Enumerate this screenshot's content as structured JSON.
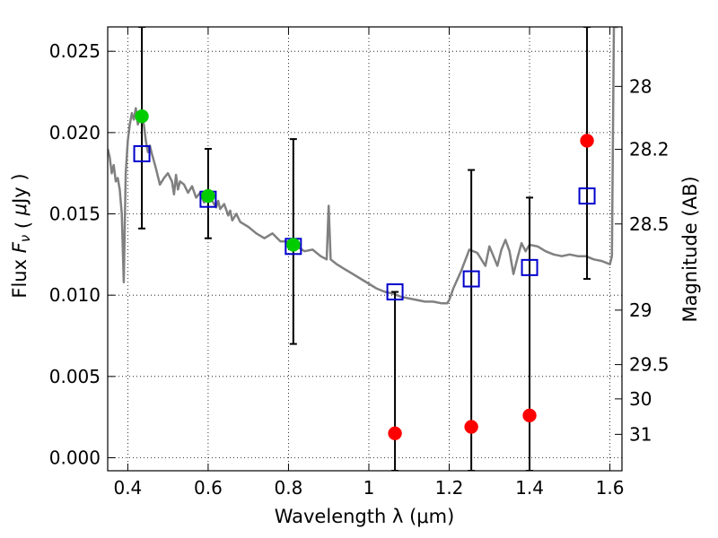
{
  "chart_data": {
    "type": "scatter",
    "xlabel": "Wavelength  λ (μm)",
    "ylabel": "Flux  Fν  ( μJy )",
    "y2label": "Magnitude (AB)",
    "xlim": [
      0.35,
      1.63
    ],
    "ylim": [
      -0.0008,
      0.0265
    ],
    "grid": "dotted",
    "xticks": [
      {
        "value": 0.4,
        "label": "0.4"
      },
      {
        "value": 0.6,
        "label": "0.6"
      },
      {
        "value": 0.8,
        "label": "0.8"
      },
      {
        "value": 1.0,
        "label": "1"
      },
      {
        "value": 1.2,
        "label": "1.2"
      },
      {
        "value": 1.4,
        "label": "1.4"
      },
      {
        "value": 1.6,
        "label": "1.6"
      }
    ],
    "yticks": [
      {
        "value": 0.0,
        "label": "0.000"
      },
      {
        "value": 0.005,
        "label": "0.005"
      },
      {
        "value": 0.01,
        "label": "0.010"
      },
      {
        "value": 0.015,
        "label": "0.015"
      },
      {
        "value": 0.02,
        "label": "0.020"
      },
      {
        "value": 0.025,
        "label": "0.025"
      }
    ],
    "y2ticks": [
      {
        "flux": 0.02284,
        "label": "28"
      },
      {
        "flux": 0.01897,
        "label": "28.2"
      },
      {
        "flux": 0.01438,
        "label": "28.5"
      },
      {
        "flux": 0.00908,
        "label": "29"
      },
      {
        "flux": 0.00573,
        "label": "29.5"
      },
      {
        "flux": 0.00362,
        "label": "30"
      },
      {
        "flux": 0.00144,
        "label": "31"
      }
    ],
    "series": [
      {
        "style": "line",
        "color": "#808080",
        "x": [
          0.35,
          0.355,
          0.36,
          0.365,
          0.37,
          0.375,
          0.38,
          0.385,
          0.39,
          0.395,
          0.4,
          0.405,
          0.41,
          0.415,
          0.42,
          0.425,
          0.43,
          0.435,
          0.44,
          0.445,
          0.45,
          0.455,
          0.46,
          0.47,
          0.48,
          0.49,
          0.5,
          0.51,
          0.515,
          0.52,
          0.525,
          0.53,
          0.54,
          0.55,
          0.56,
          0.57,
          0.58,
          0.59,
          0.6,
          0.61,
          0.62,
          0.625,
          0.63,
          0.64,
          0.65,
          0.655,
          0.66,
          0.67,
          0.68,
          0.7,
          0.72,
          0.74,
          0.76,
          0.78,
          0.8,
          0.82,
          0.84,
          0.86,
          0.88,
          0.895,
          0.9,
          0.905,
          0.91,
          0.92,
          0.94,
          0.96,
          0.98,
          1.0,
          1.02,
          1.04,
          1.06,
          1.08,
          1.1,
          1.12,
          1.14,
          1.16,
          1.18,
          1.195,
          1.2,
          1.21,
          1.23,
          1.25,
          1.27,
          1.29,
          1.3,
          1.31,
          1.32,
          1.33,
          1.34,
          1.35,
          1.36,
          1.37,
          1.38,
          1.39,
          1.4,
          1.42,
          1.44,
          1.46,
          1.48,
          1.5,
          1.52,
          1.54,
          1.56,
          1.58,
          1.6,
          1.605,
          1.61,
          1.62
        ],
        "y": [
          0.019,
          0.0185,
          0.0175,
          0.018,
          0.017,
          0.0172,
          0.0165,
          0.015,
          0.0108,
          0.0175,
          0.0195,
          0.0205,
          0.0212,
          0.0208,
          0.0215,
          0.0205,
          0.021,
          0.0208,
          0.0205,
          0.0195,
          0.0188,
          0.0192,
          0.0187,
          0.0178,
          0.0168,
          0.0172,
          0.0175,
          0.017,
          0.0162,
          0.0174,
          0.0165,
          0.017,
          0.0168,
          0.0163,
          0.0167,
          0.016,
          0.0163,
          0.0157,
          0.016,
          0.0158,
          0.0154,
          0.0158,
          0.0153,
          0.0156,
          0.0149,
          0.0152,
          0.0146,
          0.015,
          0.0145,
          0.0142,
          0.0138,
          0.0135,
          0.0138,
          0.0133,
          0.0133,
          0.013,
          0.0127,
          0.0128,
          0.0124,
          0.0122,
          0.0155,
          0.0122,
          0.0121,
          0.0119,
          0.0116,
          0.0113,
          0.011,
          0.0107,
          0.0104,
          0.0102,
          0.0101,
          0.0099,
          0.0098,
          0.0097,
          0.0096,
          0.0096,
          0.0095,
          0.0095,
          0.0097,
          0.0104,
          0.0115,
          0.0128,
          0.0126,
          0.0118,
          0.013,
          0.0124,
          0.0118,
          0.0128,
          0.0134,
          0.0127,
          0.0113,
          0.0123,
          0.0132,
          0.0127,
          0.0131,
          0.013,
          0.0127,
          0.0125,
          0.0124,
          0.0125,
          0.0124,
          0.0124,
          0.0122,
          0.0121,
          0.0119,
          0.0124,
          0.0265,
          0.0265
        ]
      },
      {
        "style": "errorbar",
        "color": "#000000",
        "x": [
          0.435,
          0.6,
          0.812,
          1.065,
          1.255,
          1.4,
          1.543
        ],
        "ylow": [
          0.0141,
          0.0135,
          0.007,
          -0.0008,
          -0.0008,
          -0.0008,
          0.011
        ],
        "yhigh": [
          0.0265,
          0.019,
          0.0196,
          0.0102,
          0.0177,
          0.016,
          0.0265
        ]
      },
      {
        "style": "open-square",
        "color": "#0000cc",
        "x": [
          0.435,
          0.6,
          0.812,
          1.065,
          1.255,
          1.4,
          1.543
        ],
        "y": [
          0.0187,
          0.0159,
          0.013,
          0.0102,
          0.011,
          0.0117,
          0.0161
        ]
      },
      {
        "style": "filled-circle",
        "color": "#00cc00",
        "x": [
          0.435,
          0.6,
          0.812
        ],
        "y": [
          0.021,
          0.0161,
          0.0131
        ]
      },
      {
        "style": "filled-circle",
        "color": "#ff0000",
        "x": [
          1.065,
          1.255,
          1.4,
          1.543
        ],
        "y": [
          0.0015,
          0.0019,
          0.0026,
          0.0195
        ]
      }
    ]
  }
}
